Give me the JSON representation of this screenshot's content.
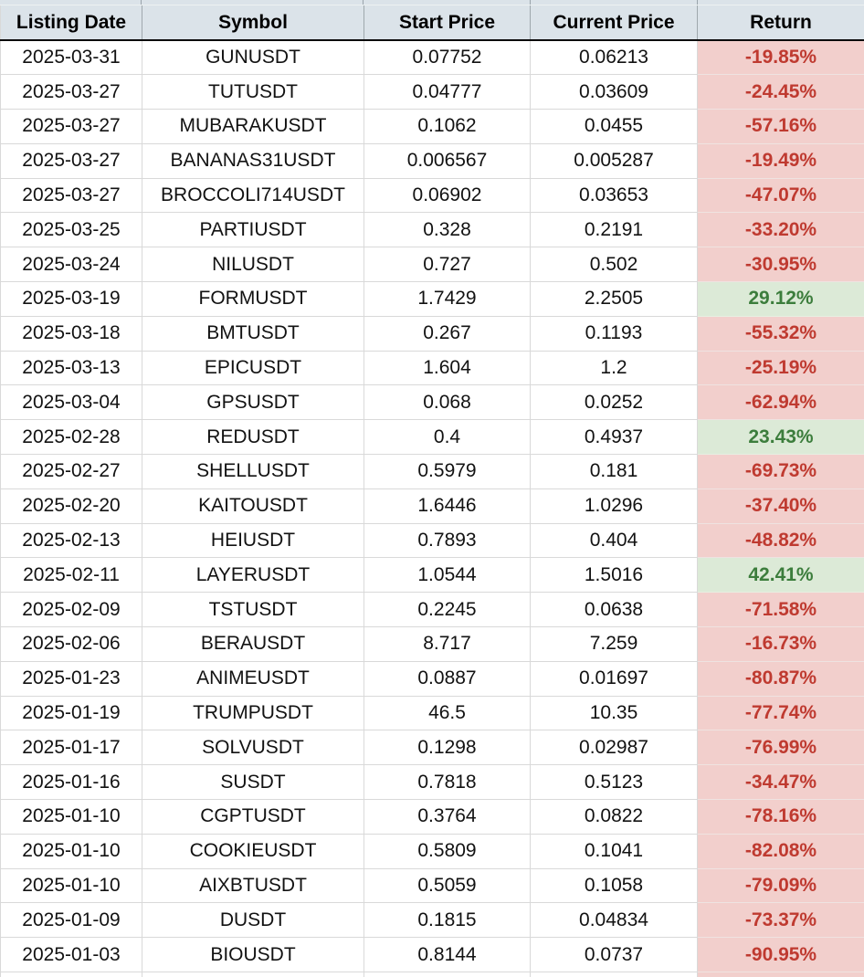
{
  "table": {
    "columns": [
      "Listing Date",
      "Symbol",
      "Start Price",
      "Current Price",
      "Return"
    ],
    "rows": [
      {
        "date": "2025-03-31",
        "symbol": "GUNUSDT",
        "start": "0.07752",
        "current": "0.06213",
        "return": "-19.85%"
      },
      {
        "date": "2025-03-27",
        "symbol": "TUTUSDT",
        "start": "0.04777",
        "current": "0.03609",
        "return": "-24.45%"
      },
      {
        "date": "2025-03-27",
        "symbol": "MUBARAKUSDT",
        "start": "0.1062",
        "current": "0.0455",
        "return": "-57.16%"
      },
      {
        "date": "2025-03-27",
        "symbol": "BANANAS31USDT",
        "start": "0.006567",
        "current": "0.005287",
        "return": "-19.49%"
      },
      {
        "date": "2025-03-27",
        "symbol": "BROCCOLI714USDT",
        "start": "0.06902",
        "current": "0.03653",
        "return": "-47.07%"
      },
      {
        "date": "2025-03-25",
        "symbol": "PARTIUSDT",
        "start": "0.328",
        "current": "0.2191",
        "return": "-33.20%"
      },
      {
        "date": "2025-03-24",
        "symbol": "NILUSDT",
        "start": "0.727",
        "current": "0.502",
        "return": "-30.95%"
      },
      {
        "date": "2025-03-19",
        "symbol": "FORMUSDT",
        "start": "1.7429",
        "current": "2.2505",
        "return": "29.12%"
      },
      {
        "date": "2025-03-18",
        "symbol": "BMTUSDT",
        "start": "0.267",
        "current": "0.1193",
        "return": "-55.32%"
      },
      {
        "date": "2025-03-13",
        "symbol": "EPICUSDT",
        "start": "1.604",
        "current": "1.2",
        "return": "-25.19%"
      },
      {
        "date": "2025-03-04",
        "symbol": "GPSUSDT",
        "start": "0.068",
        "current": "0.0252",
        "return": "-62.94%"
      },
      {
        "date": "2025-02-28",
        "symbol": "REDUSDT",
        "start": "0.4",
        "current": "0.4937",
        "return": "23.43%"
      },
      {
        "date": "2025-02-27",
        "symbol": "SHELLUSDT",
        "start": "0.5979",
        "current": "0.181",
        "return": "-69.73%"
      },
      {
        "date": "2025-02-20",
        "symbol": "KAITOUSDT",
        "start": "1.6446",
        "current": "1.0296",
        "return": "-37.40%"
      },
      {
        "date": "2025-02-13",
        "symbol": "HEIUSDT",
        "start": "0.7893",
        "current": "0.404",
        "return": "-48.82%"
      },
      {
        "date": "2025-02-11",
        "symbol": "LAYERUSDT",
        "start": "1.0544",
        "current": "1.5016",
        "return": "42.41%"
      },
      {
        "date": "2025-02-09",
        "symbol": "TSTUSDT",
        "start": "0.2245",
        "current": "0.0638",
        "return": "-71.58%"
      },
      {
        "date": "2025-02-06",
        "symbol": "BERAUSDT",
        "start": "8.717",
        "current": "7.259",
        "return": "-16.73%"
      },
      {
        "date": "2025-01-23",
        "symbol": "ANIMEUSDT",
        "start": "0.0887",
        "current": "0.01697",
        "return": "-80.87%"
      },
      {
        "date": "2025-01-19",
        "symbol": "TRUMPUSDT",
        "start": "46.5",
        "current": "10.35",
        "return": "-77.74%"
      },
      {
        "date": "2025-01-17",
        "symbol": "SOLVUSDT",
        "start": "0.1298",
        "current": "0.02987",
        "return": "-76.99%"
      },
      {
        "date": "2025-01-16",
        "symbol": "SUSDT",
        "start": "0.7818",
        "current": "0.5123",
        "return": "-34.47%"
      },
      {
        "date": "2025-01-10",
        "symbol": "CGPTUSDT",
        "start": "0.3764",
        "current": "0.0822",
        "return": "-78.16%"
      },
      {
        "date": "2025-01-10",
        "symbol": "COOKIEUSDT",
        "start": "0.5809",
        "current": "0.1041",
        "return": "-82.08%"
      },
      {
        "date": "2025-01-10",
        "symbol": "AIXBTUSDT",
        "start": "0.5059",
        "current": "0.1058",
        "return": "-79.09%"
      },
      {
        "date": "2025-01-09",
        "symbol": "DUSDT",
        "start": "0.1815",
        "current": "0.04834",
        "return": "-73.37%"
      },
      {
        "date": "2025-01-03",
        "symbol": "BIOUSDT",
        "start": "0.8144",
        "current": "0.0737",
        "return": "-90.95%"
      }
    ]
  },
  "colors": {
    "header_bg": "#dbe3e9",
    "negative_bg": "#f2cfcc",
    "negative_text": "#bf3a30",
    "positive_bg": "#dcead7",
    "positive_text": "#3c7d3c"
  }
}
